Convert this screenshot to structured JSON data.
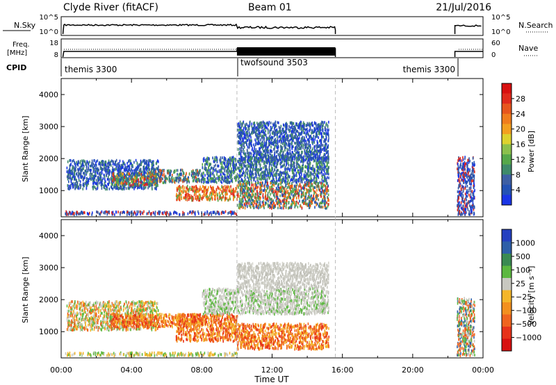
{
  "header": {
    "station": "Clyde River (fitACF)",
    "beam": "Beam 01",
    "date": "21/Jul/2016"
  },
  "nsky": {
    "label": "N.Sky",
    "ticks": [
      "10^5",
      "10^0"
    ],
    "right_label": "N.Search",
    "right_ticks": [
      "10^5",
      "10^0"
    ]
  },
  "freq": {
    "label_line1": "Freq.",
    "label_line2": "[MHz]",
    "ticks": [
      "18",
      "8"
    ],
    "right_label": "Nave",
    "right_ticks": [
      "60",
      "0"
    ]
  },
  "cpid": {
    "label": "CPID",
    "segments": [
      {
        "label": "themis 3300",
        "start_h": 0,
        "end_h": 10
      },
      {
        "label": "twofsound 3503",
        "start_h": 10,
        "end_h": 15.6
      },
      {
        "label": "themis 3300",
        "start_h": 22.4,
        "end_h": 24
      }
    ]
  },
  "chart_data": [
    {
      "type": "heatmap",
      "title": "",
      "xlabel": "",
      "ylabel": "Slant Range [km]",
      "xlim_hours": [
        0,
        24
      ],
      "ylim": [
        180,
        4500
      ],
      "yticks": [
        1000,
        2000,
        3000,
        4000
      ],
      "colorbar": {
        "label": "Power [dB]",
        "ticks": [
          "4",
          "8",
          "12",
          "16",
          "20",
          "24",
          "28"
        ],
        "colors": [
          "#1a35e6",
          "#2452b4",
          "#3e5fa4",
          "#3f8a6a",
          "#56a84a",
          "#8cc04c",
          "#ddd22e",
          "#f3a020",
          "#f07d1d",
          "#e7561d",
          "#e02a1c",
          "#d81010"
        ]
      },
      "data_blocks": [
        {
          "t": [
            0.2,
            10.0
          ],
          "r": [
            200,
            300
          ],
          "colors": [
            "#1a35e6",
            "#2452b4",
            "#e02a1c",
            "#3e5fa4"
          ]
        },
        {
          "t": [
            0.3,
            5.5
          ],
          "r": [
            1000,
            1900
          ],
          "colors": [
            "#2452b4",
            "#3e5fa4",
            "#3f8a6a",
            "#1a35e6"
          ]
        },
        {
          "t": [
            2.8,
            5.5
          ],
          "r": [
            1100,
            1500
          ],
          "colors": [
            "#e02a1c",
            "#f3a020",
            "#3f8a6a",
            "#56a84a",
            "#2452b4"
          ]
        },
        {
          "t": [
            5.0,
            8.0
          ],
          "r": [
            1200,
            1600
          ],
          "colors": [
            "#3f8a6a",
            "#56a84a",
            "#3e5fa4",
            "#2452b4",
            "#e7561d"
          ]
        },
        {
          "t": [
            6.5,
            10.0
          ],
          "r": [
            650,
            1100
          ],
          "colors": [
            "#e02a1c",
            "#f07d1d",
            "#f3a020",
            "#56a84a",
            "#e7561d"
          ]
        },
        {
          "t": [
            8.0,
            15.2
          ],
          "r": [
            1200,
            2000
          ],
          "colors": [
            "#3f8a6a",
            "#56a84a",
            "#3e5fa4",
            "#2452b4",
            "#1a35e6"
          ]
        },
        {
          "t": [
            10.0,
            15.2
          ],
          "r": [
            400,
            1200
          ],
          "colors": [
            "#f07d1d",
            "#e02a1c",
            "#56a84a",
            "#3f8a6a",
            "#2452b4"
          ]
        },
        {
          "t": [
            10.0,
            15.2
          ],
          "r": [
            1900,
            3100
          ],
          "colors": [
            "#2452b4",
            "#1a35e6",
            "#3e5fa4",
            "#3f8a6a"
          ]
        },
        {
          "t": [
            22.5,
            23.5
          ],
          "r": [
            200,
            2000
          ],
          "colors": [
            "#2452b4",
            "#3e5fa4",
            "#1a35e6",
            "#e02a1c"
          ]
        }
      ]
    },
    {
      "type": "heatmap",
      "title": "",
      "xlabel": "Time UT",
      "ylabel": "Slant Range [km]",
      "xlim_hours": [
        0,
        24
      ],
      "xticks": [
        "00:00",
        "04:00",
        "08:00",
        "12:00",
        "16:00",
        "20:00",
        "00:00"
      ],
      "ylim": [
        180,
        4500
      ],
      "yticks": [
        1000,
        2000,
        3000,
        4000
      ],
      "colorbar": {
        "label": "Velocity [m s⁻¹]",
        "ticks": [
          "−1000",
          "−500",
          "−100",
          "−25",
          "25",
          "100",
          "500",
          "1000"
        ],
        "colors": [
          "#d81010",
          "#e7321a",
          "#f0641e",
          "#f3901f",
          "#f4b62a",
          "#c8c8c0",
          "#5cb840",
          "#3a8a52",
          "#2e5fa8",
          "#2440c0"
        ]
      },
      "data_blocks": [
        {
          "t": [
            0.2,
            10.0
          ],
          "r": [
            200,
            300
          ],
          "colors": [
            "#e7b838",
            "#f4b62a",
            "#5cb840",
            "#c8c8c0"
          ]
        },
        {
          "t": [
            0.3,
            5.5
          ],
          "r": [
            1000,
            1900
          ],
          "colors": [
            "#f4b62a",
            "#c8c8c0",
            "#f0641e",
            "#5cb840"
          ]
        },
        {
          "t": [
            2.8,
            8.0
          ],
          "r": [
            1100,
            1500
          ],
          "colors": [
            "#f0641e",
            "#f3901f",
            "#e7321a",
            "#f4b62a"
          ]
        },
        {
          "t": [
            6.5,
            10.0
          ],
          "r": [
            650,
            1500
          ],
          "colors": [
            "#f0641e",
            "#f3901f",
            "#e7321a",
            "#f4b62a"
          ]
        },
        {
          "t": [
            8.0,
            15.2
          ],
          "r": [
            1500,
            2300
          ],
          "colors": [
            "#c8c8c0",
            "#bdbdb5",
            "#d4d4cc",
            "#5cb840"
          ]
        },
        {
          "t": [
            10.0,
            15.2
          ],
          "r": [
            400,
            1200
          ],
          "colors": [
            "#f0641e",
            "#f3901f",
            "#e7321a",
            "#f4b62a"
          ]
        },
        {
          "t": [
            10.0,
            15.2
          ],
          "r": [
            2300,
            3100
          ],
          "colors": [
            "#c8c8c0",
            "#d4d4cc",
            "#bdbdb5"
          ]
        },
        {
          "t": [
            22.5,
            23.5
          ],
          "r": [
            200,
            2000
          ],
          "colors": [
            "#f0641e",
            "#c8c8c0",
            "#2e5fa8",
            "#5cb840"
          ]
        }
      ]
    }
  ]
}
